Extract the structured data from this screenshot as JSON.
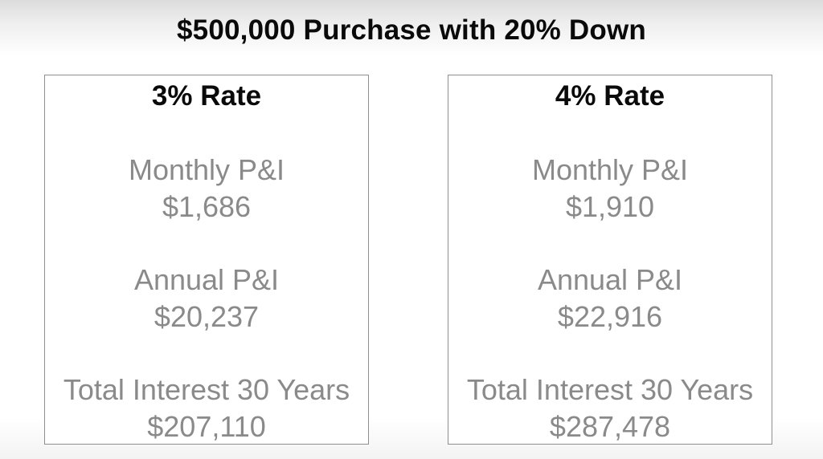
{
  "title": "$500,000 Purchase with 20% Down",
  "cards": [
    {
      "heading": "3% Rate",
      "metrics": [
        {
          "label": "Monthly P&I",
          "value": "$1,686"
        },
        {
          "label": "Annual P&I",
          "value": "$20,237"
        },
        {
          "label": "Total Interest 30 Years",
          "value": "$207,110"
        }
      ]
    },
    {
      "heading": "4% Rate",
      "metrics": [
        {
          "label": "Monthly P&I",
          "value": "$1,910"
        },
        {
          "label": "Annual P&I",
          "value": "$22,916"
        },
        {
          "label": "Total Interest 30 Years",
          "value": "$287,478"
        }
      ]
    }
  ],
  "colors": {
    "heading": "#0a0a0a",
    "metric_text": "#8a8a8a",
    "card_border": "#8e8e8e",
    "background": "#ffffff"
  }
}
